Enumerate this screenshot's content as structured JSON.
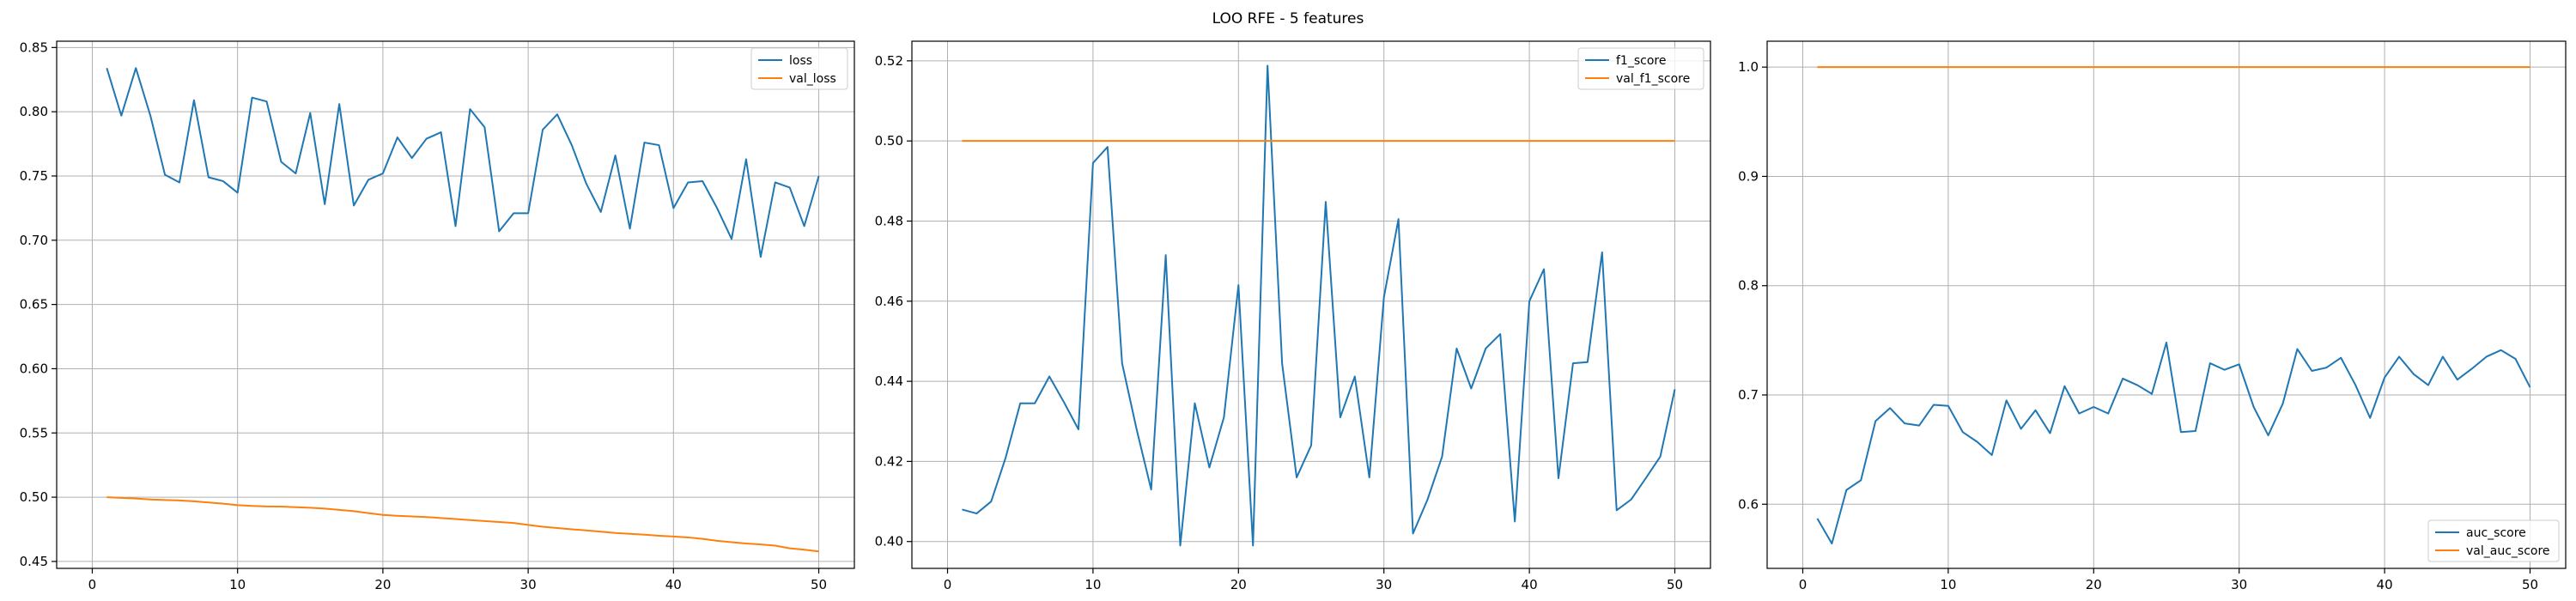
{
  "suptitle": "LOO RFE - 5 features",
  "colors": {
    "series1": "#1f77b4",
    "series2": "#ff7f0e",
    "grid": "#b0b0b0",
    "axis": "#000000"
  },
  "chart_data": [
    {
      "type": "line",
      "xlim": [
        -2.45,
        52.45
      ],
      "ylim": [
        0.4446,
        0.8549
      ],
      "xticks": [
        0,
        10,
        20,
        30,
        40,
        50
      ],
      "xtick_labels": [
        "0",
        "10",
        "20",
        "30",
        "40",
        "50"
      ],
      "yticks": [
        0.45,
        0.5,
        0.55,
        0.6,
        0.65,
        0.7,
        0.75,
        0.8,
        0.85
      ],
      "ytick_labels": [
        "0.45",
        "0.50",
        "0.55",
        "0.60",
        "0.65",
        "0.70",
        "0.75",
        "0.80",
        "0.85"
      ],
      "grid": true,
      "legend": "top-right",
      "x": [
        1,
        2,
        3,
        4,
        5,
        6,
        7,
        8,
        9,
        10,
        11,
        12,
        13,
        14,
        15,
        16,
        17,
        18,
        19,
        20,
        21,
        22,
        23,
        24,
        25,
        26,
        27,
        28,
        29,
        30,
        31,
        32,
        33,
        34,
        35,
        36,
        37,
        38,
        39,
        40,
        41,
        42,
        43,
        44,
        45,
        46,
        47,
        48,
        49,
        50
      ],
      "series": [
        {
          "name": "loss",
          "color": "#1f77b4",
          "values": [
            0.834,
            0.797,
            0.834,
            0.797,
            0.751,
            0.745,
            0.809,
            0.749,
            0.746,
            0.737,
            0.811,
            0.808,
            0.761,
            0.752,
            0.799,
            0.728,
            0.806,
            0.727,
            0.747,
            0.752,
            0.78,
            0.764,
            0.779,
            0.784,
            0.711,
            0.802,
            0.788,
            0.707,
            0.721,
            0.721,
            0.786,
            0.798,
            0.774,
            0.744,
            0.722,
            0.766,
            0.709,
            0.776,
            0.774,
            0.725,
            0.745,
            0.746,
            0.725,
            0.701,
            0.763,
            0.687,
            0.745,
            0.741,
            0.711,
            0.75
          ]
        },
        {
          "name": "val_loss",
          "color": "#ff7f0e",
          "values": [
            0.5,
            0.4995,
            0.499,
            0.4982,
            0.4978,
            0.4975,
            0.4968,
            0.4959,
            0.495,
            0.4938,
            0.4932,
            0.4928,
            0.4927,
            0.4922,
            0.4918,
            0.4911,
            0.4901,
            0.4891,
            0.4876,
            0.4862,
            0.4855,
            0.485,
            0.4845,
            0.4838,
            0.483,
            0.4822,
            0.4814,
            0.4807,
            0.4799,
            0.4784,
            0.477,
            0.476,
            0.475,
            0.4742,
            0.4732,
            0.4722,
            0.4715,
            0.4708,
            0.47,
            0.4694,
            0.4687,
            0.4676,
            0.4661,
            0.465,
            0.464,
            0.4632,
            0.4623,
            0.4602,
            0.4591,
            0.4578
          ]
        }
      ]
    },
    {
      "type": "line",
      "xlim": [
        -2.45,
        52.45
      ],
      "ylim": [
        0.3933,
        0.5249
      ],
      "xticks": [
        0,
        10,
        20,
        30,
        40,
        50
      ],
      "xtick_labels": [
        "0",
        "10",
        "20",
        "30",
        "40",
        "50"
      ],
      "yticks": [
        0.4,
        0.42,
        0.44,
        0.46,
        0.48,
        0.5,
        0.52
      ],
      "ytick_labels": [
        "0.40",
        "0.42",
        "0.44",
        "0.46",
        "0.48",
        "0.50",
        "0.52"
      ],
      "grid": true,
      "legend": "top-right",
      "x": [
        1,
        2,
        3,
        4,
        5,
        6,
        7,
        8,
        9,
        10,
        11,
        12,
        13,
        14,
        15,
        16,
        17,
        18,
        19,
        20,
        21,
        22,
        23,
        24,
        25,
        26,
        27,
        28,
        29,
        30,
        31,
        32,
        33,
        34,
        35,
        36,
        37,
        38,
        39,
        40,
        41,
        42,
        43,
        44,
        45,
        46,
        47,
        48,
        49,
        50
      ],
      "series": [
        {
          "name": "f1_score",
          "color": "#1f77b4",
          "values": [
            0.408,
            0.407,
            0.41,
            0.421,
            0.4345,
            0.4345,
            0.4412,
            0.4348,
            0.428,
            0.4945,
            0.4985,
            0.4445,
            0.428,
            0.413,
            0.4715,
            0.399,
            0.4345,
            0.4185,
            0.431,
            0.464,
            0.399,
            0.5188,
            0.4445,
            0.416,
            0.424,
            0.4848,
            0.431,
            0.4412,
            0.416,
            0.461,
            0.4805,
            0.402,
            0.4105,
            0.4212,
            0.4482,
            0.4382,
            0.4482,
            0.4518,
            0.405,
            0.46,
            0.468,
            0.4158,
            0.4445,
            0.4448,
            0.4722,
            0.4078,
            0.4105,
            0.4158,
            0.4212,
            0.438
          ]
        },
        {
          "name": "val_f1_score",
          "color": "#ff7f0e",
          "values": [
            0.5,
            0.5,
            0.5,
            0.5,
            0.5,
            0.5,
            0.5,
            0.5,
            0.5,
            0.5,
            0.5,
            0.5,
            0.5,
            0.5,
            0.5,
            0.5,
            0.5,
            0.5,
            0.5,
            0.5,
            0.5,
            0.5,
            0.5,
            0.5,
            0.5,
            0.5,
            0.5,
            0.5,
            0.5,
            0.5,
            0.5,
            0.5,
            0.5,
            0.5,
            0.5,
            0.5,
            0.5,
            0.5,
            0.5,
            0.5,
            0.5,
            0.5,
            0.5,
            0.5,
            0.5,
            0.5,
            0.5,
            0.5,
            0.5,
            0.5
          ]
        }
      ]
    },
    {
      "type": "line",
      "xlim": [
        -2.45,
        52.45
      ],
      "ylim": [
        0.5413,
        1.0237
      ],
      "xticks": [
        0,
        10,
        20,
        30,
        40,
        50
      ],
      "xtick_labels": [
        "0",
        "10",
        "20",
        "30",
        "40",
        "50"
      ],
      "yticks": [
        0.6,
        0.7,
        0.8,
        0.9,
        1.0
      ],
      "ytick_labels": [
        "0.6",
        "0.7",
        "0.8",
        "0.9",
        "1.0"
      ],
      "grid": true,
      "legend": "bottom-right",
      "x": [
        1,
        2,
        3,
        4,
        5,
        6,
        7,
        8,
        9,
        10,
        11,
        12,
        13,
        14,
        15,
        16,
        17,
        18,
        19,
        20,
        21,
        22,
        23,
        24,
        25,
        26,
        27,
        28,
        29,
        30,
        31,
        32,
        33,
        34,
        35,
        36,
        37,
        38,
        39,
        40,
        41,
        42,
        43,
        44,
        45,
        46,
        47,
        48,
        49,
        50
      ],
      "series": [
        {
          "name": "auc_score",
          "color": "#1f77b4",
          "values": [
            0.587,
            0.564,
            0.613,
            0.622,
            0.676,
            0.688,
            0.674,
            0.672,
            0.691,
            0.69,
            0.666,
            0.657,
            0.645,
            0.695,
            0.669,
            0.686,
            0.665,
            0.708,
            0.683,
            0.689,
            0.683,
            0.715,
            0.709,
            0.701,
            0.748,
            0.666,
            0.667,
            0.729,
            0.723,
            0.728,
            0.689,
            0.663,
            0.692,
            0.742,
            0.722,
            0.725,
            0.734,
            0.709,
            0.679,
            0.716,
            0.735,
            0.719,
            0.709,
            0.735,
            0.714,
            0.724,
            0.735,
            0.741,
            0.733,
            0.707
          ]
        },
        {
          "name": "val_auc_score",
          "color": "#ff7f0e",
          "values": [
            1.0,
            1.0,
            1.0,
            1.0,
            1.0,
            1.0,
            1.0,
            1.0,
            1.0,
            1.0,
            1.0,
            1.0,
            1.0,
            1.0,
            1.0,
            1.0,
            1.0,
            1.0,
            1.0,
            1.0,
            1.0,
            1.0,
            1.0,
            1.0,
            1.0,
            1.0,
            1.0,
            1.0,
            1.0,
            1.0,
            1.0,
            1.0,
            1.0,
            1.0,
            1.0,
            1.0,
            1.0,
            1.0,
            1.0,
            1.0,
            1.0,
            1.0,
            1.0,
            1.0,
            1.0,
            1.0,
            1.0,
            1.0,
            1.0,
            1.0
          ]
        }
      ]
    }
  ]
}
